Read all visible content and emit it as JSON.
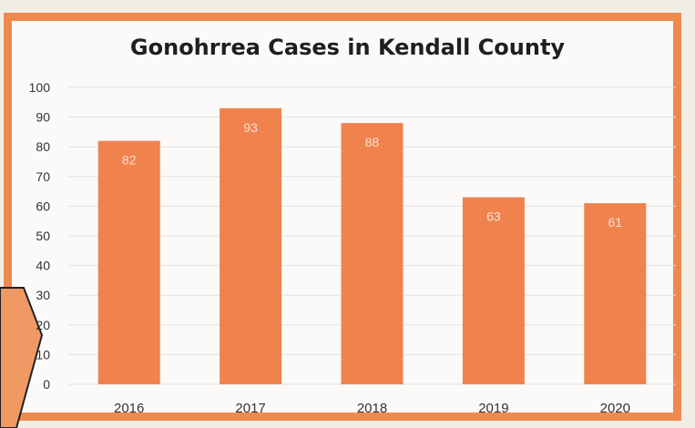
{
  "chart_data": {
    "type": "bar",
    "title": "Gonohrrea Cases in Kendall County",
    "categories": [
      "2016",
      "2017",
      "2018",
      "2019",
      "2020"
    ],
    "values": [
      82,
      93,
      88,
      63,
      61
    ],
    "data_labels": [
      "82",
      "93",
      "88",
      "63",
      "61"
    ],
    "ylim": [
      0,
      100
    ],
    "yticks": [
      "0",
      "10",
      "20",
      "30",
      "40",
      "50",
      "60",
      "70",
      "80",
      "90",
      "100"
    ],
    "xlabel": "",
    "ylabel": "",
    "grid": true,
    "legend": "none"
  },
  "colors": {
    "bar": "#f0824e",
    "frame": "#ef8a4f",
    "label": "#fde0cf",
    "grid": "#e2e2e2",
    "side_shape": "#ef9a64"
  }
}
